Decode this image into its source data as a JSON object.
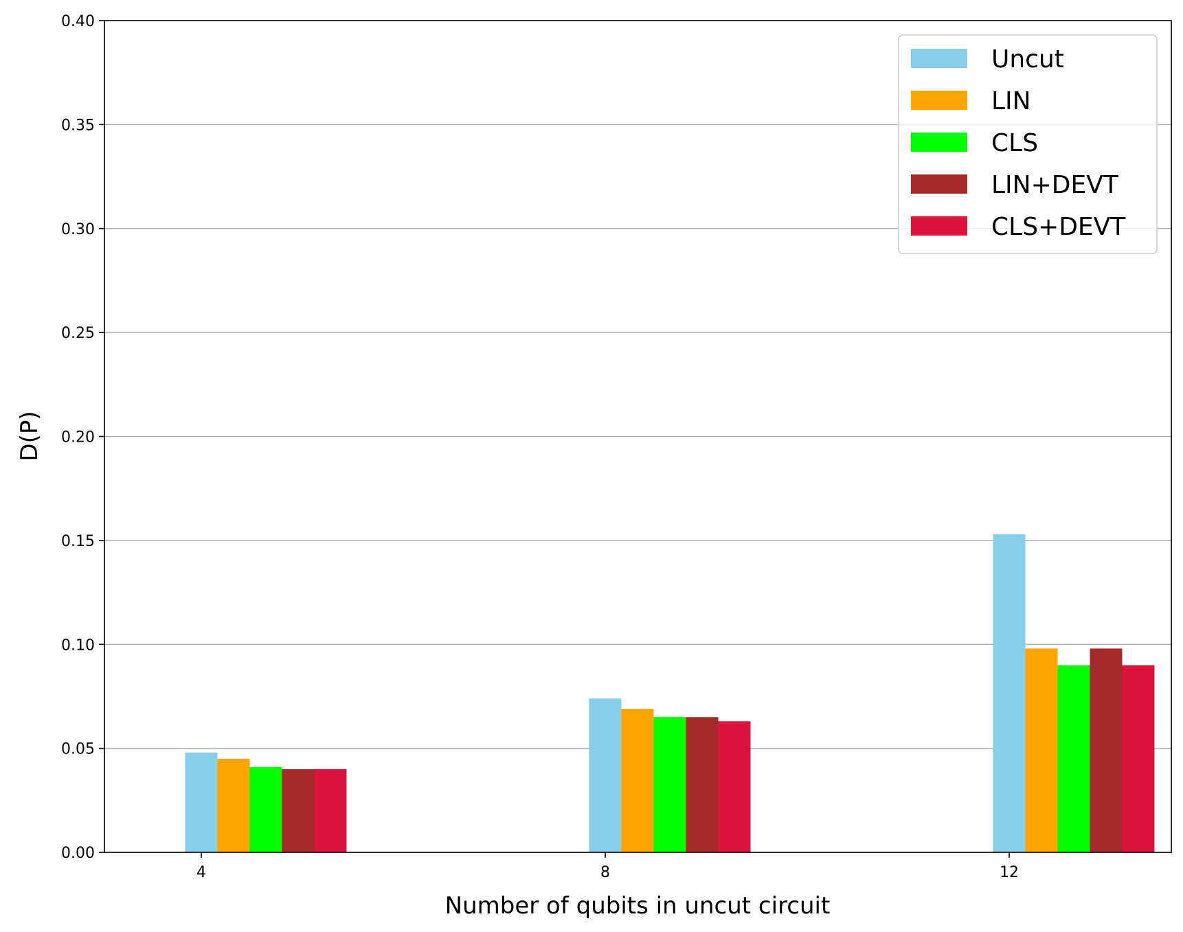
{
  "chart_data": {
    "type": "bar",
    "title": "",
    "xlabel": "Number of qubits in uncut circuit",
    "ylabel": "D(P)",
    "categories": [
      "4",
      "8",
      "12"
    ],
    "ylim": [
      0,
      0.4
    ],
    "yticks": [
      "0.00",
      "0.05",
      "0.10",
      "0.15",
      "0.20",
      "0.25",
      "0.30",
      "0.35",
      "0.40"
    ],
    "grid": "horizontal",
    "legend_position": "top-right",
    "series": [
      {
        "name": "Uncut",
        "color": "#87CEEB",
        "values": [
          0.048,
          0.074,
          0.153
        ]
      },
      {
        "name": "LIN",
        "color": "#FFA500",
        "values": [
          0.045,
          0.069,
          0.098
        ]
      },
      {
        "name": "CLS",
        "color": "#00FF00",
        "values": [
          0.041,
          0.065,
          0.09
        ]
      },
      {
        "name": "LIN+DEVT",
        "color": "#A52A2A",
        "values": [
          0.04,
          0.065,
          0.098
        ]
      },
      {
        "name": "CLS+DEVT",
        "color": "#DC143C",
        "values": [
          0.04,
          0.063,
          0.09
        ]
      }
    ]
  }
}
